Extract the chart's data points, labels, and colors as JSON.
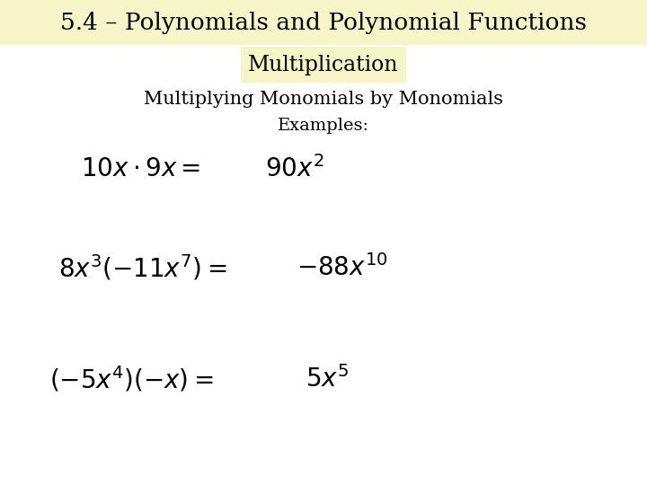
{
  "title": "5.4 – Polynomials and Polynomial Functions",
  "subtitle": "Multiplication",
  "subtitle_bg": "#f5f5c8",
  "section": "Multiplying Monomials by Monomials",
  "examples_label": "Examples:",
  "bg_color": "#ffffff",
  "title_bg": "#f5f5c8",
  "text_color": "#000000",
  "title_fontsize": 19,
  "subtitle_fontsize": 17,
  "section_fontsize": 15,
  "examples_fontsize": 14,
  "eq_fontsize": 20
}
